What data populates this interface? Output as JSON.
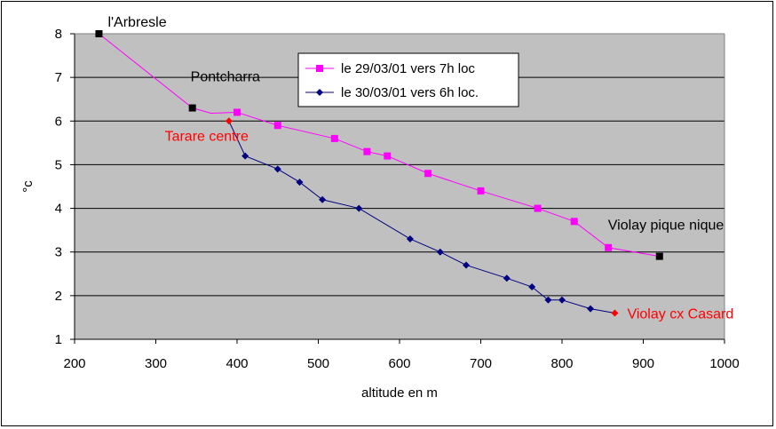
{
  "chart_data": {
    "type": "line",
    "title": "",
    "xlabel": "altitude en m",
    "ylabel": "°c",
    "xlim": [
      200,
      1000
    ],
    "ylim": [
      1,
      8
    ],
    "xticks": [
      200,
      300,
      400,
      500,
      600,
      700,
      800,
      900,
      1000
    ],
    "yticks": [
      1,
      2,
      3,
      4,
      5,
      6,
      7,
      8
    ],
    "grid": "horizontal",
    "legend_position": "top-center",
    "colors": {
      "plot_bg": "#c0c0c0",
      "series1": "#ff00ff",
      "series2": "#000080",
      "endpoint_black": "#000000",
      "endpoint_red": "#ff0000"
    },
    "series": [
      {
        "name": "le 29/03/01 vers 7h loc",
        "marker": "square",
        "points": [
          {
            "x": 230,
            "y": 8.0,
            "marker_color": "#000000"
          },
          {
            "x": 345,
            "y": 6.3,
            "marker_color": "#000000"
          },
          {
            "x": 368,
            "y": 6.18,
            "marker": "none"
          },
          {
            "x": 400,
            "y": 6.2
          },
          {
            "x": 450,
            "y": 5.9
          },
          {
            "x": 520,
            "y": 5.6
          },
          {
            "x": 560,
            "y": 5.3
          },
          {
            "x": 585,
            "y": 5.2
          },
          {
            "x": 635,
            "y": 4.8
          },
          {
            "x": 700,
            "y": 4.4
          },
          {
            "x": 770,
            "y": 4.0
          },
          {
            "x": 815,
            "y": 3.7
          },
          {
            "x": 857,
            "y": 3.1
          },
          {
            "x": 920,
            "y": 2.9,
            "marker_color": "#000000"
          }
        ]
      },
      {
        "name": "le 30/03/01 vers 6h loc.",
        "marker": "diamond",
        "points": [
          {
            "x": 390,
            "y": 6.0,
            "marker_color": "#ff0000"
          },
          {
            "x": 410,
            "y": 5.2
          },
          {
            "x": 450,
            "y": 4.9
          },
          {
            "x": 477,
            "y": 4.6
          },
          {
            "x": 505,
            "y": 4.2
          },
          {
            "x": 550,
            "y": 4.0
          },
          {
            "x": 613,
            "y": 3.3
          },
          {
            "x": 650,
            "y": 3.0
          },
          {
            "x": 682,
            "y": 2.7
          },
          {
            "x": 732,
            "y": 2.4
          },
          {
            "x": 763,
            "y": 2.2
          },
          {
            "x": 783,
            "y": 1.9
          },
          {
            "x": 800,
            "y": 1.9
          },
          {
            "x": 835,
            "y": 1.7
          },
          {
            "x": 865,
            "y": 1.6,
            "marker_color": "#ff0000"
          }
        ]
      }
    ],
    "annotations": [
      {
        "text": "l'Arbresle",
        "x": 230,
        "y": 8.0,
        "color": "#000000",
        "placement": "above-right"
      },
      {
        "text": "Pontcharra",
        "x": 345,
        "y": 6.3,
        "color": "#000000",
        "placement": "above"
      },
      {
        "text": "Tarare centre",
        "x": 390,
        "y": 6.0,
        "color": "#ff0000",
        "placement": "below-left"
      },
      {
        "text": "Violay pique nique",
        "x": 920,
        "y": 2.9,
        "color": "#000000",
        "placement": "above"
      },
      {
        "text": "Violay cx Casard",
        "x": 865,
        "y": 1.6,
        "color": "#ff0000",
        "placement": "right"
      }
    ]
  }
}
